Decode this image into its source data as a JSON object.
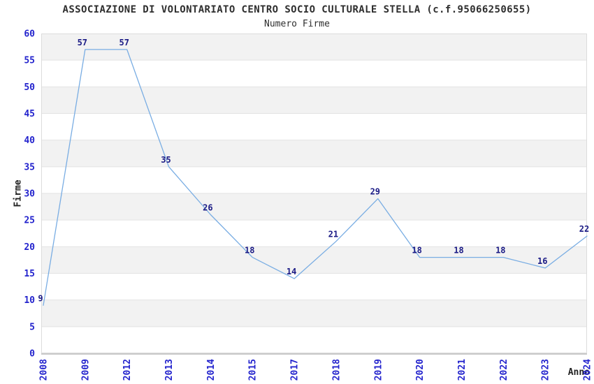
{
  "chart_data": {
    "type": "line",
    "title": "ASSOCIAZIONE DI VOLONTARIATO CENTRO SOCIO CULTURALE STELLA (c.f.95066250655)",
    "subtitle": "Numero Firme",
    "xlabel": "Anno",
    "ylabel": "Firme",
    "categories": [
      "2008",
      "2009",
      "2012",
      "2013",
      "2014",
      "2015",
      "2017",
      "2018",
      "2019",
      "2020",
      "2021",
      "2022",
      "2023",
      "2024"
    ],
    "values": [
      9,
      57,
      57,
      35,
      26,
      18,
      14,
      21,
      29,
      18,
      18,
      18,
      16,
      22
    ],
    "ylim": [
      0,
      60
    ],
    "ytick_step": 5,
    "yticks": [
      0,
      5,
      10,
      15,
      20,
      25,
      30,
      35,
      40,
      45,
      50,
      55,
      60
    ],
    "legend": "none",
    "grid": {
      "horizontal_bands": true,
      "band_intervals": [
        [
          5,
          10
        ],
        [
          15,
          20
        ],
        [
          25,
          30
        ],
        [
          35,
          40
        ],
        [
          45,
          50
        ],
        [
          55,
          60
        ]
      ]
    },
    "show_value_labels": true,
    "marker": "none",
    "colors": {
      "line": "#79ade3",
      "value_label": "#1a1a85",
      "tick_label": "#2323cd",
      "band": "#f2f2f2",
      "gridline": "#e3e3e3",
      "plot_border": "#dcdcdc",
      "axis_line": "#c9c9c9",
      "title_text": "#2e2e2e"
    }
  }
}
